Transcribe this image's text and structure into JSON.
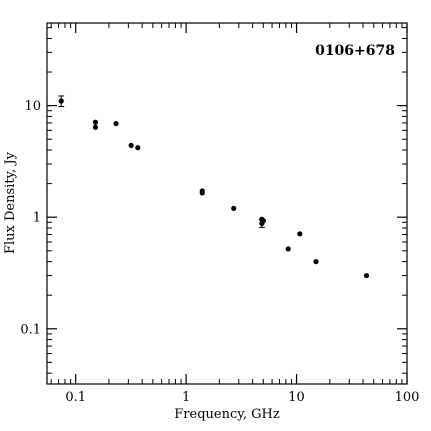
{
  "chart_data": {
    "type": "scatter",
    "title": "0106+678",
    "xlabel": "Frequency, GHz",
    "ylabel": "Flux Density, Jy",
    "xscale": "log",
    "yscale": "log",
    "xlim": [
      0.055,
      100
    ],
    "ylim": [
      0.032,
      55
    ],
    "x_ticks": [
      {
        "value": 0.1,
        "label": "0.1"
      },
      {
        "value": 1,
        "label": "1"
      },
      {
        "value": 10,
        "label": "10"
      },
      {
        "value": 100,
        "label": "100"
      }
    ],
    "y_ticks": [
      {
        "value": 0.1,
        "label": "0.1"
      },
      {
        "value": 1,
        "label": "1"
      },
      {
        "value": 10,
        "label": "10"
      }
    ],
    "grid": false,
    "legend": "none",
    "points": [
      {
        "x": 0.074,
        "y": 11.0,
        "yerr": 1.2
      },
      {
        "x": 0.151,
        "y": 7.1
      },
      {
        "x": 0.151,
        "y": 6.4
      },
      {
        "x": 0.232,
        "y": 6.9
      },
      {
        "x": 0.318,
        "y": 4.4
      },
      {
        "x": 0.365,
        "y": 4.2
      },
      {
        "x": 1.4,
        "y": 1.72
      },
      {
        "x": 1.4,
        "y": 1.65
      },
      {
        "x": 2.7,
        "y": 1.2
      },
      {
        "x": 4.85,
        "y": 0.96
      },
      {
        "x": 4.85,
        "y": 0.88,
        "yerr": 0.07
      },
      {
        "x": 5.0,
        "y": 0.93
      },
      {
        "x": 8.4,
        "y": 0.52
      },
      {
        "x": 10.7,
        "y": 0.71
      },
      {
        "x": 15.0,
        "y": 0.4
      },
      {
        "x": 43.0,
        "y": 0.3
      }
    ],
    "marker_color": "#000000"
  }
}
